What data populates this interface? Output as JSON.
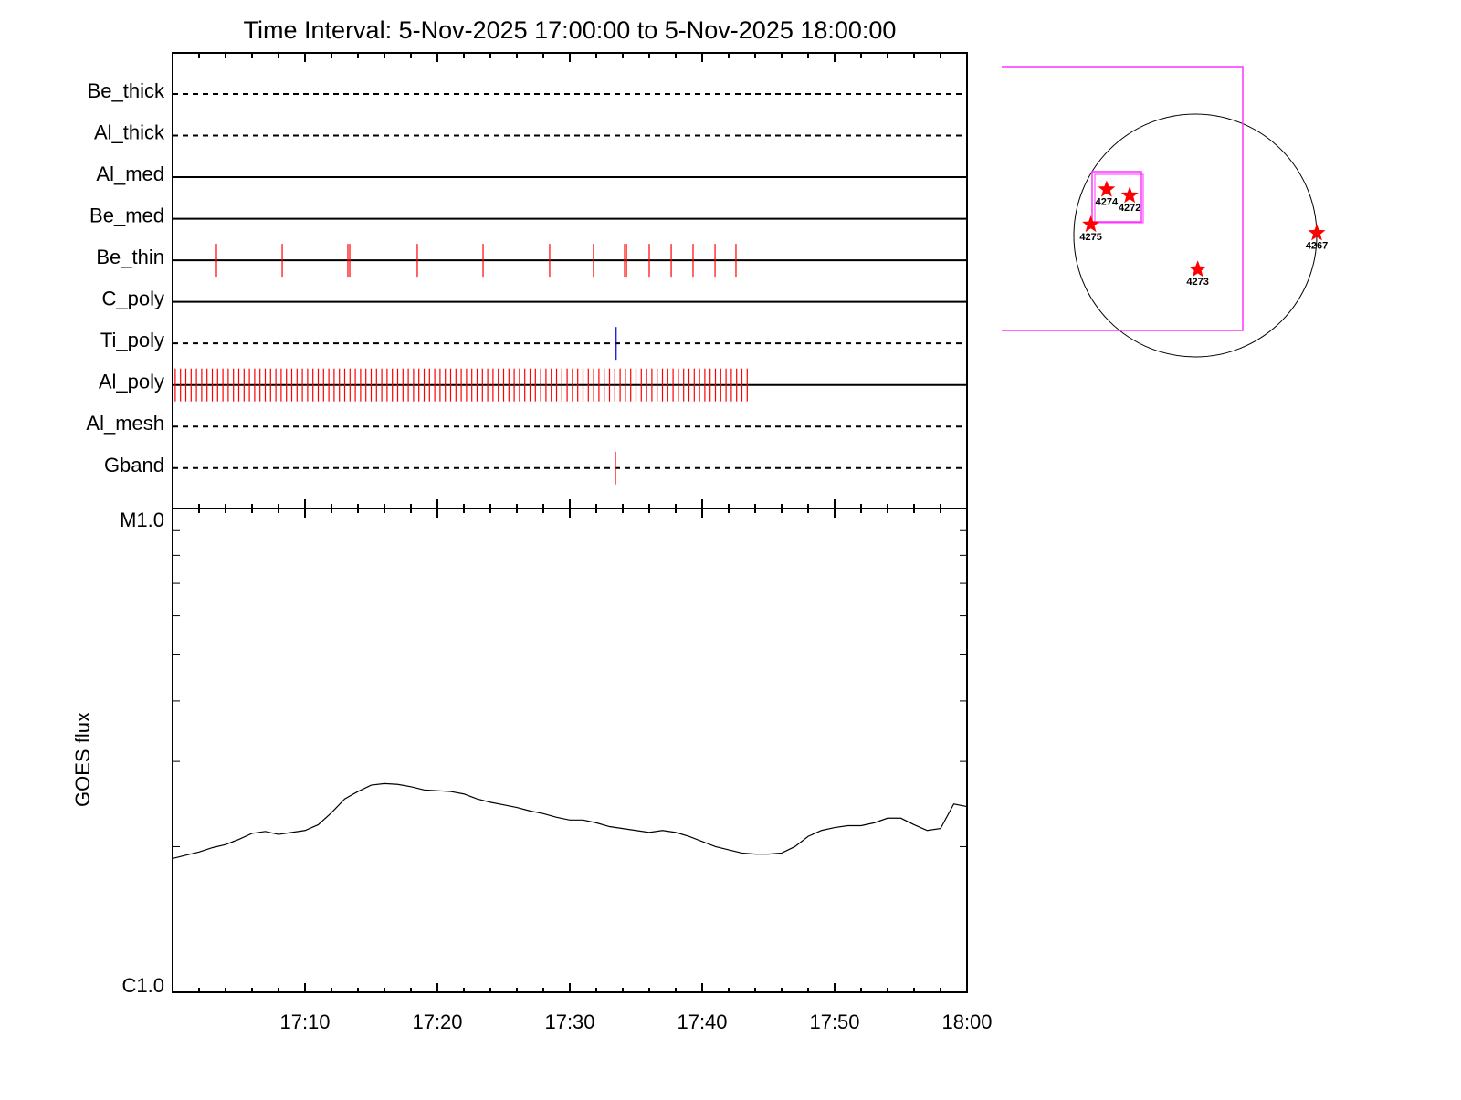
{
  "chart_data": [
    {
      "type": "timeline",
      "title": "Time Interval:  5-Nov-2025 17:00:00 to  5-Nov-2025 18:00:00",
      "xlim": [
        0,
        60
      ],
      "xticks": [
        0,
        10,
        20,
        30,
        40,
        50,
        60
      ],
      "xminorticks": [
        2,
        4,
        6,
        8,
        12,
        14,
        16,
        18,
        22,
        24,
        26,
        28,
        32,
        34,
        36,
        38,
        42,
        44,
        46,
        48,
        52,
        54,
        56,
        58
      ],
      "rows": [
        {
          "name": "Be_thick",
          "style": "dashed",
          "color": "#ff0000",
          "events": []
        },
        {
          "name": "Al_thick",
          "style": "dashed",
          "color": "#ff0000",
          "events": []
        },
        {
          "name": "Al_med",
          "style": "solid",
          "color": "#ff0000",
          "events": []
        },
        {
          "name": "Be_med",
          "style": "solid",
          "color": "#ff0000",
          "events": []
        },
        {
          "name": "Be_thin",
          "style": "solid",
          "color": "#ff0000",
          "events": [
            3.31,
            8.28,
            13.24,
            13.38,
            18.48,
            23.45,
            28.48,
            31.79,
            34.14,
            34.28,
            36.0,
            37.66,
            39.31,
            40.97,
            42.55
          ]
        },
        {
          "name": "C_poly",
          "style": "solid",
          "color": "#ff0000",
          "events": []
        },
        {
          "name": "Ti_poly",
          "style": "dashed",
          "color": "#0000cc",
          "events": [
            33.5
          ]
        },
        {
          "name": "Al_poly",
          "style": "solid",
          "color": "#ff0000",
          "events": [
            0.2,
            0.6,
            1,
            1.4,
            1.8,
            2.2,
            2.6,
            3,
            3.4,
            3.8,
            4.2,
            4.6,
            5,
            5.4,
            5.8,
            6.2,
            6.6,
            7,
            7.4,
            7.8,
            8.2,
            8.6,
            9,
            9.4,
            9.8,
            10.2,
            10.6,
            11,
            11.4,
            11.8,
            12.2,
            12.6,
            13,
            13.4,
            13.8,
            14.2,
            14.6,
            15,
            15.4,
            15.8,
            16.2,
            16.6,
            17,
            17.4,
            17.8,
            18.2,
            18.6,
            19,
            19.4,
            19.8,
            20.2,
            20.6,
            21,
            21.4,
            21.8,
            22.2,
            22.6,
            23,
            23.4,
            23.8,
            24.2,
            24.6,
            25,
            25.4,
            25.8,
            26.2,
            26.6,
            27,
            27.4,
            27.8,
            28.2,
            28.6,
            29,
            29.4,
            29.8,
            30.2,
            30.6,
            31,
            31.4,
            31.8,
            32.2,
            32.6,
            33,
            33.4,
            33.8,
            34.2,
            34.6,
            35,
            35.4,
            35.8,
            36.2,
            36.6,
            37,
            37.4,
            37.8,
            38.2,
            38.6,
            39,
            39.4,
            39.8,
            40.2,
            40.6,
            41,
            41.4,
            41.8,
            42.2,
            42.6,
            43,
            43.4
          ]
        },
        {
          "name": "Al_mesh",
          "style": "dashed",
          "color": "#ff0000",
          "events": []
        },
        {
          "name": "Gband",
          "style": "dashed",
          "color": "#ff0000",
          "events": [
            33.45
          ]
        }
      ]
    },
    {
      "type": "line",
      "ylabel": "GOES flux",
      "log": true,
      "color": "#000000",
      "x": [
        0,
        1,
        2,
        3,
        4,
        5,
        6,
        7,
        8,
        9,
        10,
        11,
        12,
        13,
        14,
        15,
        16,
        17,
        18,
        19,
        20,
        21,
        22,
        23,
        24,
        25,
        26,
        27,
        28,
        29,
        30,
        31,
        32,
        33,
        34,
        35,
        36,
        37,
        38,
        39,
        40,
        41,
        42,
        43,
        44,
        45,
        46,
        47,
        48,
        49,
        50,
        51,
        52,
        53,
        54,
        55,
        56,
        57,
        58,
        59,
        60
      ],
      "values": [
        1.89e-06,
        1.92e-06,
        1.95e-06,
        1.99e-06,
        2.02e-06,
        2.07e-06,
        2.13e-06,
        2.15e-06,
        2.12e-06,
        2.14e-06,
        2.16e-06,
        2.22e-06,
        2.35e-06,
        2.51e-06,
        2.6e-06,
        2.68e-06,
        2.7e-06,
        2.69e-06,
        2.66e-06,
        2.62e-06,
        2.61e-06,
        2.6e-06,
        2.57e-06,
        2.51e-06,
        2.47e-06,
        2.44e-06,
        2.41e-06,
        2.37e-06,
        2.34e-06,
        2.3e-06,
        2.27e-06,
        2.27e-06,
        2.24e-06,
        2.2e-06,
        2.18e-06,
        2.16e-06,
        2.14e-06,
        2.16e-06,
        2.14e-06,
        2.1e-06,
        2.05e-06,
        2e-06,
        1.97e-06,
        1.94e-06,
        1.93e-06,
        1.93e-06,
        1.94e-06,
        2e-06,
        2.1e-06,
        2.16e-06,
        2.19e-06,
        2.21e-06,
        2.21e-06,
        2.24e-06,
        2.29e-06,
        2.29e-06,
        2.22e-06,
        2.16e-06,
        2.18e-06,
        2.45e-06,
        2.42e-06
      ],
      "xlim": [
        0,
        60
      ],
      "xticks": [
        {
          "value": 10,
          "label": "17:10"
        },
        {
          "value": 20,
          "label": "17:20"
        },
        {
          "value": 30,
          "label": "17:30"
        },
        {
          "value": 40,
          "label": "17:40"
        },
        {
          "value": 50,
          "label": "17:50"
        },
        {
          "value": 60,
          "label": "18:00"
        }
      ],
      "xminorticks": [
        2,
        4,
        6,
        8,
        12,
        14,
        16,
        18,
        22,
        24,
        26,
        28,
        32,
        34,
        36,
        38,
        42,
        44,
        46,
        48,
        52,
        54,
        56,
        58
      ],
      "ylim": [
        1e-06,
        1e-05
      ],
      "yticks": [
        {
          "value": 1e-06,
          "label": "C1.0"
        },
        {
          "value": 1e-05,
          "label": "M1.0"
        }
      ],
      "yminorticks": [
        2e-06,
        3e-06,
        4e-06,
        5e-06,
        6e-06,
        7e-06,
        8e-06,
        9e-06
      ]
    },
    {
      "type": "map",
      "color": "#ff0000",
      "regions": [
        {
          "name": "4274",
          "x": -0.73,
          "y": 0.38
        },
        {
          "name": "4272",
          "x": -0.54,
          "y": 0.33
        },
        {
          "name": "4275",
          "x": -0.86,
          "y": 0.09
        },
        {
          "name": "4273",
          "x": 0.02,
          "y": -0.28
        },
        {
          "name": "4267",
          "x": 1.0,
          "y": 0.02
        }
      ]
    }
  ]
}
